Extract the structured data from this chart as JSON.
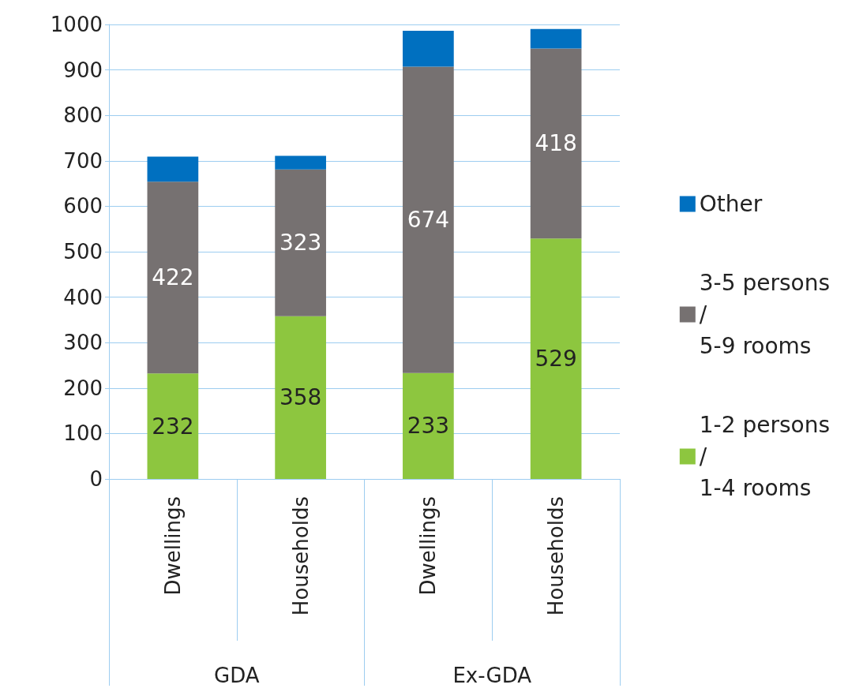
{
  "chart_data": {
    "type": "bar",
    "stacked": true,
    "categories": [
      "Dwellings",
      "Households",
      "Dwellings",
      "Households"
    ],
    "annotations": [
      "GDA",
      "Ex-GDA"
    ],
    "series": [
      {
        "name": "1-2 persons / 1-4 rooms",
        "color": "#8dc63f",
        "values": [
          232,
          358,
          233,
          529
        ],
        "value_labels": [
          "232",
          "358",
          "233",
          "529"
        ]
      },
      {
        "name": "3-5 persons / 5-9 rooms",
        "color": "#767171",
        "values": [
          422,
          323,
          674,
          418
        ],
        "value_labels": [
          "422",
          "323",
          "674",
          "418"
        ]
      },
      {
        "name": "Other",
        "color": "#0070c0",
        "values": [
          55,
          30,
          79,
          43
        ]
      }
    ],
    "ylim": [
      0,
      1000
    ],
    "yticks": [
      0,
      100,
      200,
      300,
      400,
      500,
      600,
      700,
      800,
      900,
      1000
    ],
    "grid": true,
    "legend": "right"
  }
}
